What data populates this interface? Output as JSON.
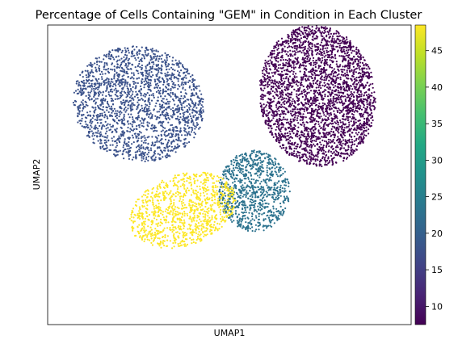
{
  "chart_data": {
    "type": "scatter",
    "title": "Percentage of Cells Containing \"GEM\" in Condition in Each Cluster",
    "xlabel": "UMAP1",
    "ylabel": "UMAP2",
    "colorbar": {
      "colormap": "viridis",
      "range": [
        7.5,
        48.5
      ],
      "ticks": [
        10,
        15,
        20,
        25,
        30,
        35,
        40,
        45
      ],
      "tick_labels": [
        "10",
        "15",
        "20",
        "25",
        "30",
        "35",
        "40",
        "45"
      ]
    },
    "axis_ticks_shown": false,
    "grid": false,
    "clusters": [
      {
        "value": 8,
        "color": "#440154",
        "center": [
          3.2,
          2.9
        ],
        "n_points": 3000
      },
      {
        "value": 18,
        "color": "#3b528b",
        "center": [
          -3.3,
          2.6
        ],
        "n_points": 2000
      },
      {
        "value": 24,
        "color": "#2c728e",
        "center": [
          0.9,
          -0.6
        ],
        "n_points": 900
      },
      {
        "value": 48,
        "color": "#fde725",
        "center": [
          -1.7,
          -1.3
        ],
        "n_points": 1000
      }
    ]
  }
}
